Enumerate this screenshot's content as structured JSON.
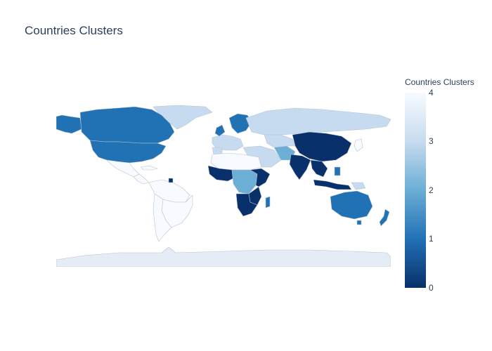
{
  "title": "Countries Clusters",
  "colorbar": {
    "title": "Countries Clusters",
    "ticks": [
      "4",
      "3",
      "2",
      "1",
      "0"
    ]
  },
  "colors": {
    "c0": "#08306b",
    "c1": "#2171b5",
    "c2": "#6baed6",
    "c3": "#c6dbef",
    "c4": "#f7fbff",
    "land_nodata": "#e5ecf6",
    "border": "#bcc3cf"
  }
}
